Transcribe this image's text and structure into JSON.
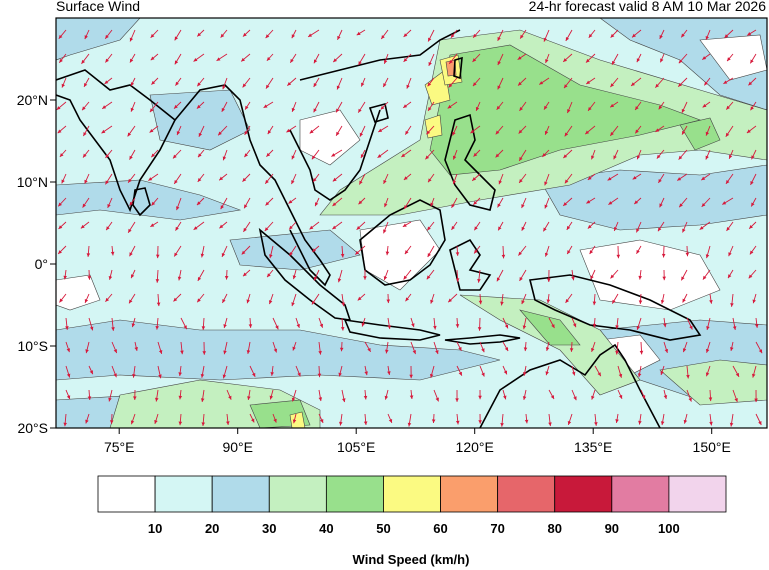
{
  "header": {
    "title": "Surface Wind",
    "valid": "24-hr forecast valid 8 AM 10 Mar 2026"
  },
  "axes": {
    "lon_ticks": [
      "75°E",
      "90°E",
      "105°E",
      "120°E",
      "135°E",
      "150°E"
    ],
    "lat_ticks": [
      "20°N",
      "10°N",
      "0°",
      "10°S",
      "20°S"
    ],
    "lon_range": [
      67,
      157
    ],
    "lat_range": [
      -20,
      30
    ]
  },
  "colorbar": {
    "title": "Wind Speed (km/h)",
    "labels": [
      "10",
      "20",
      "30",
      "40",
      "50",
      "60",
      "70",
      "80",
      "90",
      "100"
    ],
    "colors": [
      "#ffffff",
      "#d4f6f4",
      "#b0dbea",
      "#c4f0c0",
      "#98e08c",
      "#fbfa82",
      "#fa9e6c",
      "#e6666a",
      "#c8193a",
      "#e27ca2",
      "#f2d4ec"
    ]
  },
  "legend_colors": {
    "arrow": "#d6193b",
    "coast": "#000000",
    "contour": "#444444"
  }
}
